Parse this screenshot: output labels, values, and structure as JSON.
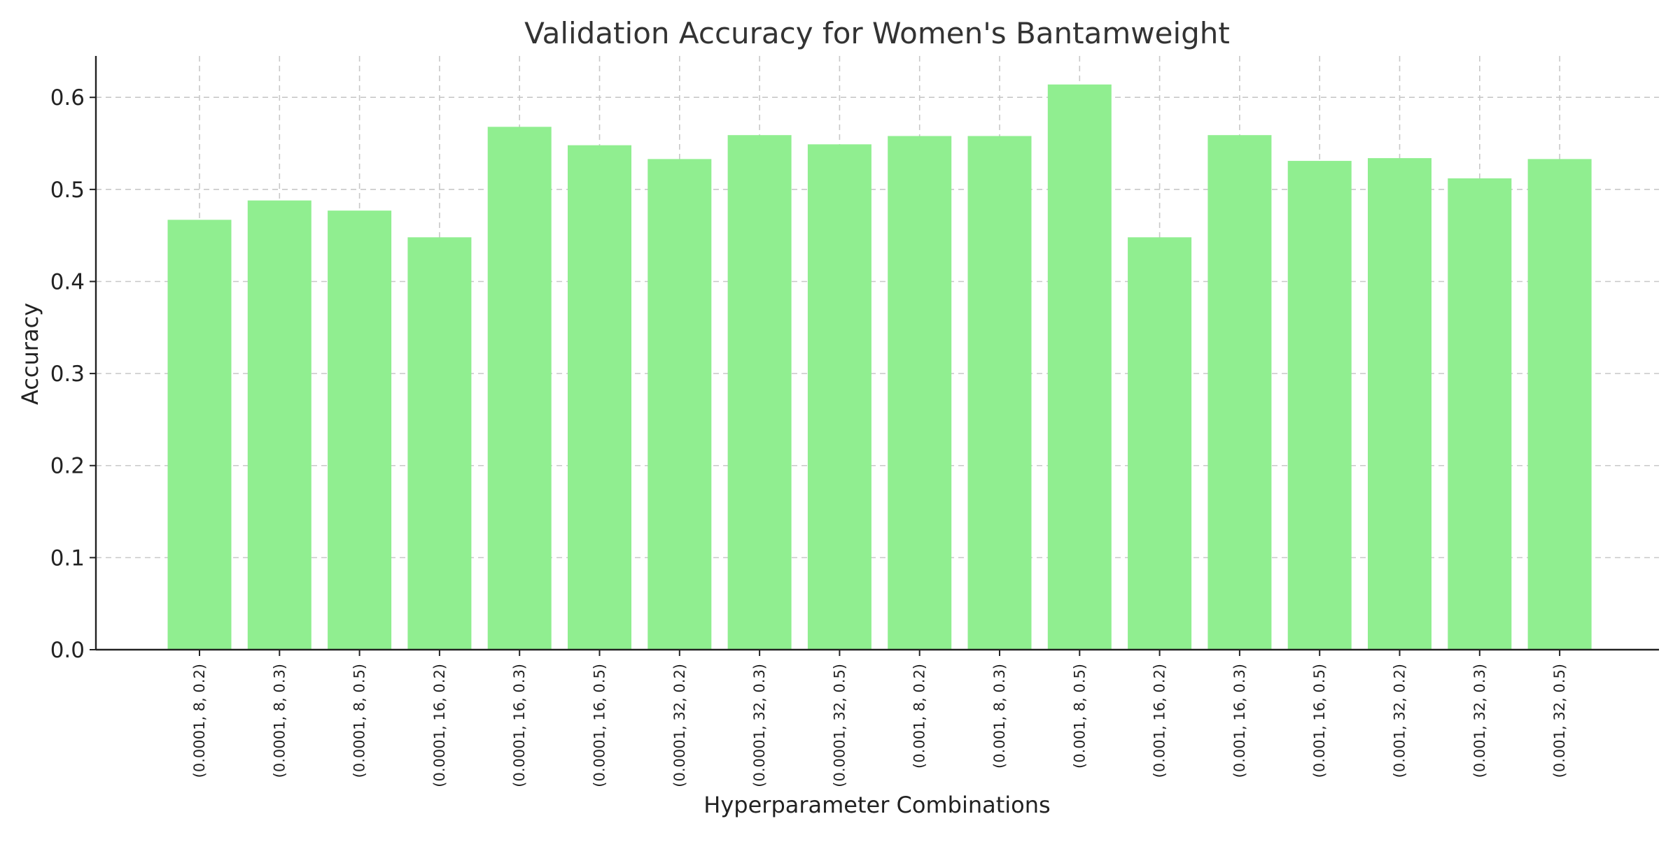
{
  "chart_data": {
    "type": "bar",
    "title": "Validation Accuracy for Women's Bantamweight",
    "xlabel": "Hyperparameter Combinations",
    "ylabel": "Accuracy",
    "ylim": [
      0,
      0.645
    ],
    "yticks": [
      0.0,
      0.1,
      0.2,
      0.3,
      0.4,
      0.5,
      0.6
    ],
    "ytick_labels": [
      "0.0",
      "0.1",
      "0.2",
      "0.3",
      "0.4",
      "0.5",
      "0.6"
    ],
    "grid": true,
    "bar_color": "#90ee90",
    "categories": [
      "(0.0001, 8, 0.2)",
      "(0.0001, 8, 0.3)",
      "(0.0001, 8, 0.5)",
      "(0.0001, 16, 0.2)",
      "(0.0001, 16, 0.3)",
      "(0.0001, 16, 0.5)",
      "(0.0001, 32, 0.2)",
      "(0.0001, 32, 0.3)",
      "(0.0001, 32, 0.5)",
      "(0.001, 8, 0.2)",
      "(0.001, 8, 0.3)",
      "(0.001, 8, 0.5)",
      "(0.001, 16, 0.2)",
      "(0.001, 16, 0.3)",
      "(0.001, 16, 0.5)",
      "(0.001, 32, 0.2)",
      "(0.001, 32, 0.3)",
      "(0.001, 32, 0.5)"
    ],
    "values": [
      0.467,
      0.488,
      0.477,
      0.448,
      0.568,
      0.548,
      0.533,
      0.559,
      0.549,
      0.558,
      0.558,
      0.614,
      0.448,
      0.559,
      0.531,
      0.534,
      0.512,
      0.533
    ]
  }
}
